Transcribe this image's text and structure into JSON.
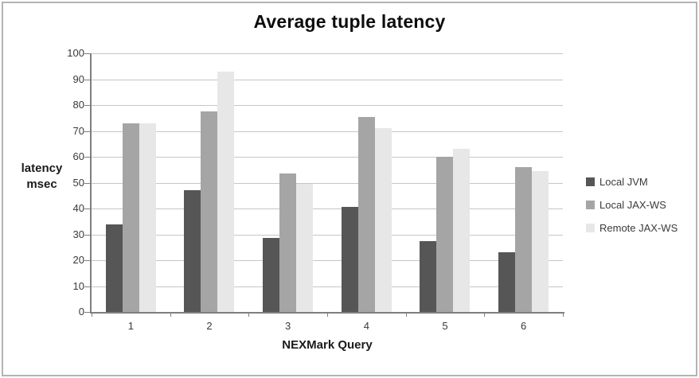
{
  "chart_data": {
    "type": "bar",
    "title": "Average tuple latency",
    "xlabel": "NEXMark Query",
    "ylabel": "latency msec",
    "ylabel_lines": [
      "latency",
      "msec"
    ],
    "categories": [
      "1",
      "2",
      "3",
      "4",
      "5",
      "6"
    ],
    "series": [
      {
        "name": "Local JVM",
        "color": "#565656",
        "values": [
          34,
          47,
          28.5,
          40.5,
          27.5,
          23
        ]
      },
      {
        "name": "Local JAX-WS",
        "color": "#a5a5a5",
        "values": [
          73,
          77.5,
          53.5,
          75.5,
          60,
          56
        ]
      },
      {
        "name": "Remote JAX-WS",
        "color": "#e7e7e7",
        "values": [
          73,
          93,
          49.5,
          71,
          63,
          54.5
        ]
      }
    ],
    "ylim": [
      0,
      100
    ],
    "ytick_step": 10,
    "grid": true,
    "legend_position": "right"
  },
  "colors": {
    "gridline": "#c6c6c6",
    "axis": "#7f7f7f",
    "tick_text": "#3a3a3a",
    "frame_border": "#b3b3b3"
  }
}
